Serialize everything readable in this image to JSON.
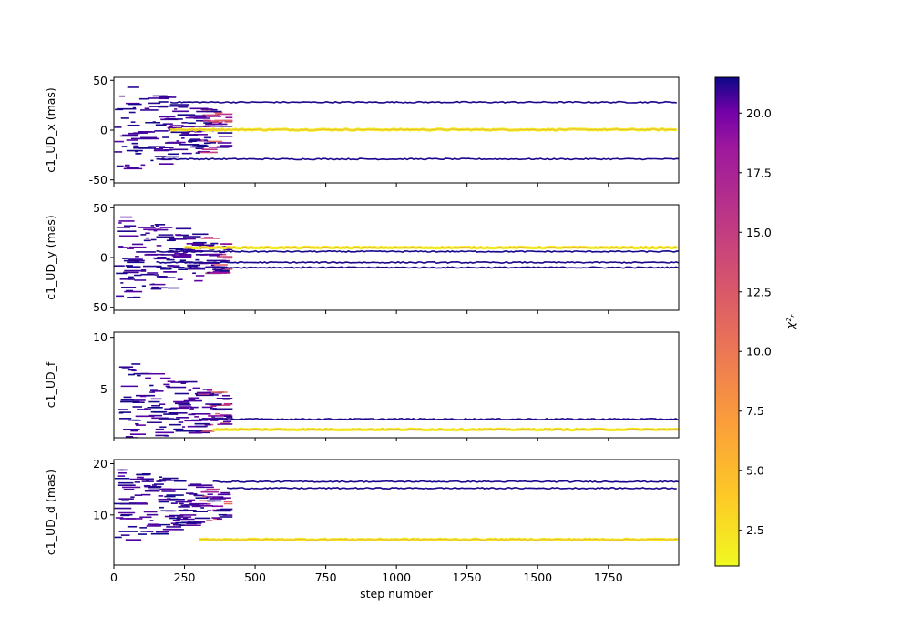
{
  "chart_data": {
    "type": "line",
    "xlabel": "step number",
    "xlim": [
      0,
      1999
    ],
    "xticks": [
      0,
      250,
      500,
      750,
      1000,
      1250,
      1500,
      1750
    ],
    "colorbar": {
      "label": "χ²ᵣ",
      "colormap": "plasma",
      "range": [
        1.0,
        21.5
      ],
      "ticks": [
        "2.5",
        "5.0",
        "7.5",
        "10.0",
        "12.5",
        "15.0",
        "17.5",
        "20.0"
      ],
      "tick_values": [
        2.5,
        5.0,
        7.5,
        10.0,
        12.5,
        15.0,
        17.5,
        20.0
      ]
    },
    "panels": [
      {
        "ylabel": "c1_UD_x (mas)",
        "ylim": [
          -53,
          53
        ],
        "yticks": [
          -50,
          0,
          50
        ],
        "burn_in": {
          "x_end": 420,
          "y_center": 0,
          "spread": 50
        },
        "converged": [
          {
            "x_start": 200,
            "value": 0.5,
            "chi2": 1.5
          },
          {
            "x_start": 200,
            "value": 28,
            "chi2": 21
          },
          {
            "x_start": 150,
            "value": -29,
            "chi2": 21
          }
        ]
      },
      {
        "ylabel": "c1_UD_y (mas)",
        "ylim": [
          -53,
          53
        ],
        "yticks": [
          -50,
          0,
          50
        ],
        "burn_in": {
          "x_end": 420,
          "y_center": 0,
          "spread": 48
        },
        "converged": [
          {
            "x_start": 250,
            "value": 10,
            "chi2": 1.5
          },
          {
            "x_start": 150,
            "value": 6,
            "chi2": 21
          },
          {
            "x_start": 150,
            "value": -5,
            "chi2": 21
          },
          {
            "x_start": 150,
            "value": -10,
            "chi2": 21
          }
        ]
      },
      {
        "ylabel": "c1_UD_f",
        "ylim": [
          0.3,
          10.5
        ],
        "yticks": [
          5,
          10
        ],
        "burn_in": {
          "x_end": 420,
          "y_center": 3,
          "spread": 5
        },
        "converged": [
          {
            "x_start": 350,
            "value": 1.1,
            "chi2": 1.5
          },
          {
            "x_start": 300,
            "value": 2.1,
            "chi2": 21
          }
        ]
      },
      {
        "ylabel": "c1_UD_d (mas)",
        "ylim": [
          0.2,
          20.8
        ],
        "yticks": [
          10,
          20
        ],
        "burn_in": {
          "x_end": 420,
          "y_center": 12,
          "spread": 8
        },
        "converged": [
          {
            "x_start": 300,
            "value": 5.2,
            "chi2": 1.5
          },
          {
            "x_start": 350,
            "value": 16.5,
            "chi2": 21
          },
          {
            "x_start": 400,
            "value": 15.2,
            "chi2": 21
          }
        ]
      }
    ]
  }
}
